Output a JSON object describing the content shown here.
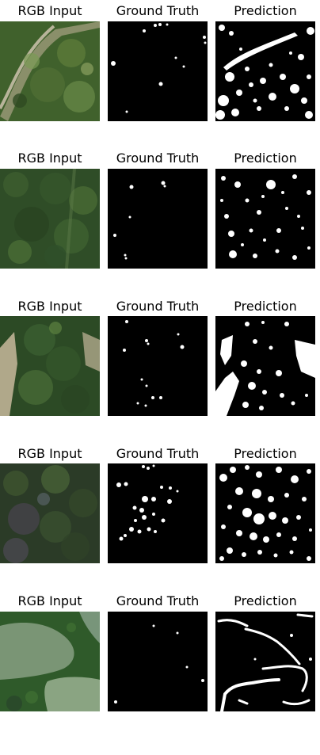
{
  "column_titles": {
    "rgb": "RGB Input",
    "ground_truth": "Ground Truth",
    "prediction": "Prediction"
  },
  "colors": {
    "background": "#ffffff",
    "mask_background": "#000000",
    "mask_foreground": "#ffffff",
    "title_text": "#000000"
  },
  "rows": [
    {
      "scene": "forest with diagonal dirt road at left"
    },
    {
      "scene": "dense forest canopy"
    },
    {
      "scene": "forest with clearing at left edge"
    },
    {
      "scene": "dark forest with purple-tinted ground"
    },
    {
      "scene": "forest patches surrounded by grass fields"
    }
  ]
}
